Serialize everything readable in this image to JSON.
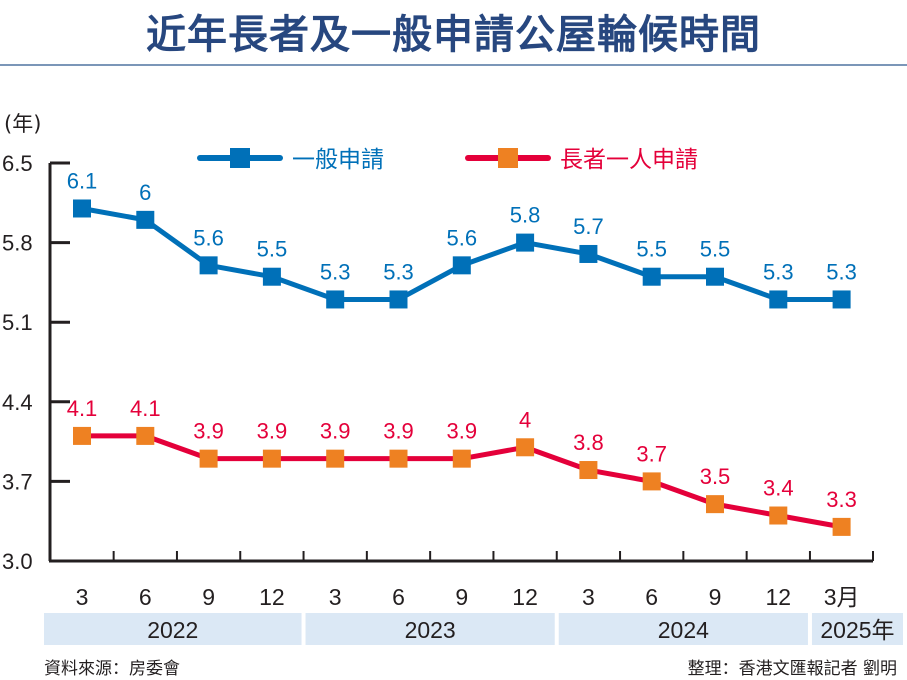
{
  "title": "近年長者及一般申請公屋輪候時間",
  "footer": {
    "source": "資料來源：房委會",
    "credit": "整理：香港文匯報記者 劉明"
  },
  "chart_data": {
    "type": "line",
    "title": "近年長者及一般申請公屋輪候時間",
    "ylabel": "(年)",
    "xlabel": "",
    "ylim": [
      3.0,
      6.5
    ],
    "yticks": [
      "6.5",
      "5.8",
      "5.1",
      "4.4",
      "3.7",
      "3.0"
    ],
    "ytick_values": [
      6.5,
      5.8,
      5.1,
      4.4,
      3.7,
      3.0
    ],
    "categories": [
      "3",
      "6",
      "9",
      "12",
      "3",
      "6",
      "9",
      "12",
      "3",
      "6",
      "9",
      "12",
      "3月"
    ],
    "year_groups": [
      {
        "label": "2022",
        "count": 4
      },
      {
        "label": "2023",
        "count": 4
      },
      {
        "label": "2024",
        "count": 4
      },
      {
        "label": "2025年",
        "count": 1
      }
    ],
    "grid": false,
    "legend_position": "top",
    "series": [
      {
        "name": "一般申請",
        "line_color": "#0070b8",
        "marker_color": "#0070b8",
        "label_color": "#0070b8",
        "values": [
          6.1,
          6.0,
          5.6,
          5.5,
          5.3,
          5.3,
          5.6,
          5.8,
          5.7,
          5.5,
          5.5,
          5.3,
          5.3
        ],
        "labels": [
          "6.1",
          "6",
          "5.6",
          "5.5",
          "5.3",
          "5.3",
          "5.6",
          "5.8",
          "5.7",
          "5.5",
          "5.5",
          "5.3",
          "5.3"
        ]
      },
      {
        "name": "長者一人申請",
        "line_color": "#e4003a",
        "marker_color": "#ee8122",
        "label_color": "#e4003a",
        "values": [
          4.1,
          4.1,
          3.9,
          3.9,
          3.9,
          3.9,
          3.9,
          4.0,
          3.8,
          3.7,
          3.5,
          3.4,
          3.3
        ],
        "labels": [
          "4.1",
          "4.1",
          "3.9",
          "3.9",
          "3.9",
          "3.9",
          "3.9",
          "4",
          "3.8",
          "3.7",
          "3.5",
          "3.4",
          "3.3"
        ]
      }
    ],
    "colors": {
      "axis": "#231f20",
      "year_band": "#dbe8f5",
      "title": "#27477f"
    }
  }
}
